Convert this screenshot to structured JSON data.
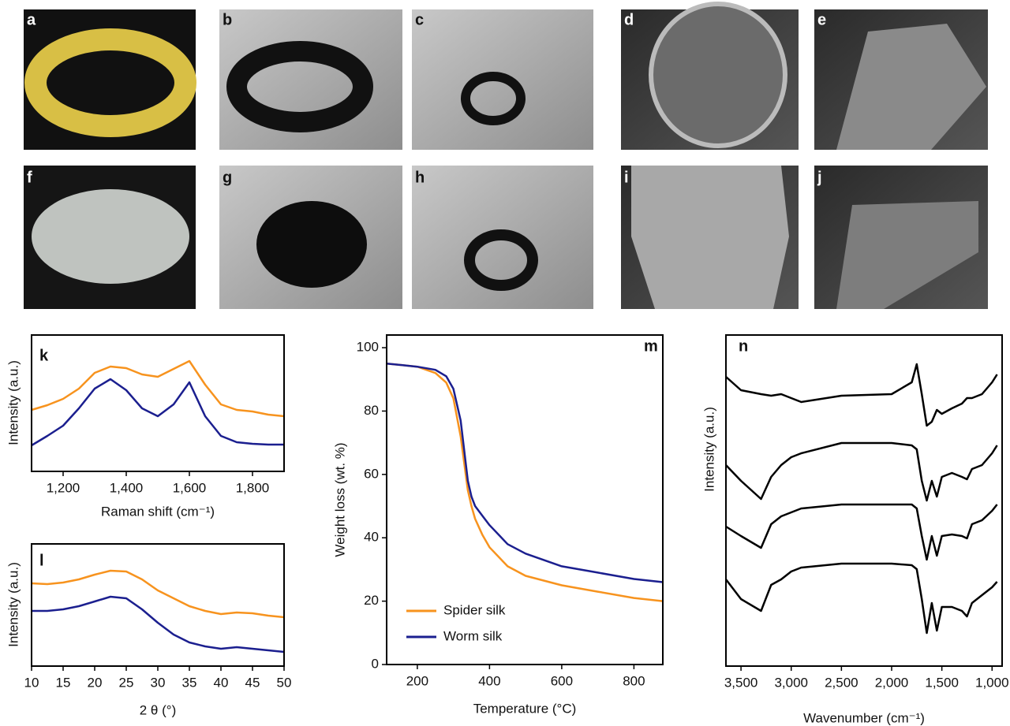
{
  "images": [
    {
      "label": "a"
    },
    {
      "label": "b"
    },
    {
      "label": "c"
    },
    {
      "label": "d"
    },
    {
      "label": "e"
    },
    {
      "label": "f"
    },
    {
      "label": "g"
    },
    {
      "label": "h"
    },
    {
      "label": "i"
    },
    {
      "label": "j"
    }
  ],
  "chart_data": [
    {
      "type": "line",
      "panel_label": "k",
      "x_label": "Raman shift (cm⁻¹)",
      "y_label": "Intensity (a.u.)",
      "x": [
        1100,
        1150,
        1200,
        1250,
        1300,
        1350,
        1400,
        1450,
        1500,
        1550,
        1600,
        1650,
        1700,
        1750,
        1800,
        1850,
        1900
      ],
      "series": [
        {
          "color": "#f7931e",
          "values": [
            78,
            84,
            92,
            105,
            125,
            133,
            131,
            123,
            120,
            130,
            140,
            110,
            85,
            78,
            76,
            72,
            70
          ]
        },
        {
          "color": "#1b1f8f",
          "values": [
            33,
            45,
            58,
            80,
            105,
            117,
            103,
            80,
            70,
            85,
            113,
            70,
            45,
            37,
            35,
            34,
            34
          ]
        }
      ],
      "xlim": [
        1100,
        1900
      ],
      "ylim": [
        0,
        173
      ],
      "xticks": [
        {
          "value": 1200,
          "label": "1,200"
        },
        {
          "value": 1400,
          "label": "1,400"
        },
        {
          "value": 1600,
          "label": "1,600"
        },
        {
          "value": 1800,
          "label": "1,800"
        }
      ]
    },
    {
      "type": "line",
      "panel_label": "l",
      "x_label": "2 θ (°)",
      "y_label": "Intensity (a.u.)",
      "x": [
        10,
        12.5,
        15,
        17.5,
        20,
        22.5,
        25,
        27.5,
        30,
        32.5,
        35,
        37.5,
        40,
        42.5,
        45,
        47.5,
        50
      ],
      "series": [
        {
          "color": "#f7931e",
          "values": [
            105,
            104,
            106,
            110,
            116,
            121,
            120,
            110,
            96,
            86,
            76,
            70,
            66,
            68,
            67,
            64,
            62
          ]
        },
        {
          "color": "#1b1f8f",
          "values": [
            70,
            70,
            72,
            76,
            82,
            88,
            86,
            72,
            55,
            40,
            30,
            25,
            22,
            24,
            22,
            20,
            18
          ]
        }
      ],
      "xlim": [
        10,
        50
      ],
      "ylim": [
        0,
        155
      ],
      "xticks": [
        10,
        15,
        20,
        25,
        30,
        35,
        40,
        45,
        50
      ]
    },
    {
      "type": "line",
      "panel_label": "m",
      "x_label": "Temperature (°C)",
      "y_label": "Weight loss (wt. %)",
      "x": [
        115,
        200,
        250,
        280,
        300,
        320,
        340,
        350,
        360,
        380,
        400,
        450,
        500,
        600,
        700,
        800,
        880
      ],
      "series": [
        {
          "name": "Spider silk",
          "color": "#f7931e",
          "values": [
            95,
            94,
            92,
            89,
            84,
            72,
            55,
            50,
            46,
            41,
            37,
            31,
            28,
            25,
            23,
            21,
            20
          ]
        },
        {
          "name": "Worm silk",
          "color": "#1b1f8f",
          "values": [
            95,
            94,
            93,
            91,
            87,
            77,
            58,
            53,
            50,
            47,
            44,
            38,
            35,
            31,
            29,
            27,
            26
          ]
        }
      ],
      "xlim": [
        115,
        880
      ],
      "ylim": [
        0,
        104
      ],
      "xticks": [
        200,
        400,
        600,
        800
      ],
      "yticks": [
        0,
        20,
        40,
        60,
        80,
        100
      ],
      "legend": "lower left"
    },
    {
      "type": "line",
      "panel_label": "n",
      "x_label": "Wavenumber (cm⁻¹)",
      "y_label": "Intensity (a.u.)",
      "x": [
        3650,
        3500,
        3300,
        3200,
        3100,
        3000,
        2900,
        2500,
        2000,
        1800,
        1750,
        1700,
        1650,
        1600,
        1550,
        1500,
        1400,
        1300,
        1250,
        1200,
        1100,
        1000,
        950
      ],
      "series": [
        {
          "color": "#000000",
          "values": [
            367,
            350,
            345,
            343,
            345,
            340,
            335,
            343,
            345,
            360,
            383,
            345,
            305,
            310,
            325,
            320,
            327,
            333,
            340,
            340,
            345,
            360,
            370
          ]
        },
        {
          "color": "#000000",
          "values": [
            255,
            235,
            212,
            240,
            255,
            265,
            270,
            283,
            283,
            280,
            275,
            235,
            210,
            235,
            215,
            240,
            245,
            240,
            237,
            250,
            255,
            270,
            280
          ]
        },
        {
          "color": "#000000",
          "values": [
            177,
            165,
            150,
            180,
            190,
            195,
            200,
            205,
            205,
            205,
            200,
            165,
            135,
            165,
            140,
            165,
            167,
            165,
            162,
            180,
            185,
            197,
            205
          ]
        },
        {
          "color": "#000000",
          "values": [
            110,
            85,
            70,
            103,
            110,
            120,
            125,
            130,
            130,
            128,
            123,
            85,
            42,
            80,
            45,
            75,
            75,
            70,
            63,
            80,
            90,
            100,
            107
          ]
        }
      ],
      "xlim": [
        3650,
        900
      ],
      "ylim": [
        0,
        420
      ],
      "xticks": [
        {
          "value": 3500,
          "label": "3,500"
        },
        {
          "value": 3000,
          "label": "3,000"
        },
        {
          "value": 2500,
          "label": "2,500"
        },
        {
          "value": 2000,
          "label": "2,000"
        },
        {
          "value": 1500,
          "label": "1,500"
        },
        {
          "value": 1000,
          "label": "1,000"
        }
      ]
    }
  ]
}
